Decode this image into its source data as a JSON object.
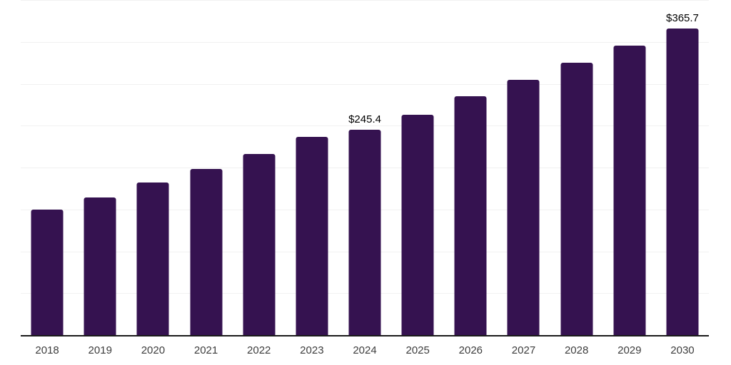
{
  "chart_data": {
    "type": "bar",
    "title": "",
    "xlabel": "",
    "ylabel": "",
    "categories": [
      "2018",
      "2019",
      "2020",
      "2021",
      "2022",
      "2023",
      "2024",
      "2025",
      "2026",
      "2027",
      "2028",
      "2029",
      "2030"
    ],
    "values": [
      150.0,
      164.5,
      182.0,
      198.3,
      216.6,
      236.3,
      245.4,
      262.8,
      285.1,
      304.8,
      325.4,
      345.9,
      365.7
    ],
    "value_labels": {
      "2024": "$245.4",
      "2030": "$365.7"
    },
    "ylim": [
      0,
      400
    ],
    "gridline_step": 50,
    "grid": "horizontal-only",
    "legend": "none",
    "y_axis_tick_labels": "none",
    "colors": {
      "bar": "#351250",
      "gridline": "#f1f1f1",
      "axis_line": "#1a1a1a",
      "tick_label": "#3d3d3d",
      "value_label": "#000000",
      "background": "#ffffff"
    }
  }
}
